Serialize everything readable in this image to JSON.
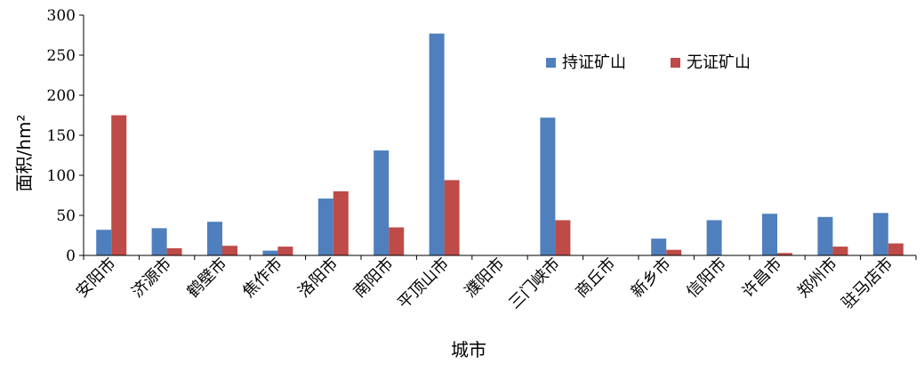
{
  "chart_data": {
    "type": "bar",
    "categories": [
      "安阳市",
      "济源市",
      "鹤壁市",
      "焦作市",
      "洛阳市",
      "南阳市",
      "平顶山市",
      "濮阳市",
      "三门峡市",
      "商丘市",
      "新乡市",
      "信阳市",
      "许昌市",
      "郑州市",
      "驻马店市"
    ],
    "series": [
      {
        "name": "持证矿山",
        "color": "#4f7fbd",
        "values": [
          32,
          34,
          42,
          6,
          71,
          131,
          277,
          0,
          172,
          0,
          21,
          44,
          52,
          48,
          53
        ]
      },
      {
        "name": "无证矿山",
        "color": "#be4b48",
        "values": [
          175,
          9,
          12,
          11,
          80,
          35,
          94,
          0,
          44,
          0,
          7,
          0,
          3,
          11,
          15
        ]
      }
    ],
    "title": "",
    "xlabel": "城市",
    "ylabel": "面积/hm²",
    "ylim": [
      0,
      300
    ],
    "yticks": [
      "0",
      "50",
      "100",
      "150",
      "200",
      "250",
      "300"
    ],
    "grid": false,
    "legend_position": "top-right"
  }
}
